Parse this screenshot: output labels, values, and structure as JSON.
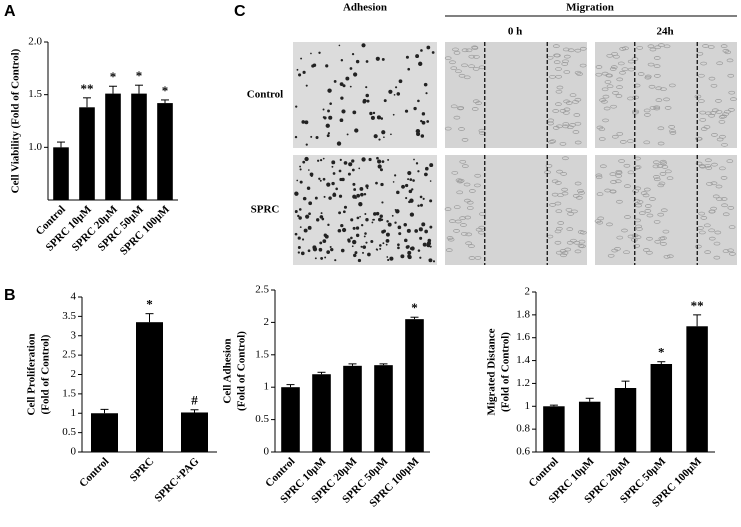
{
  "panel_labels": {
    "a": "A",
    "b": "B",
    "c": "C"
  },
  "micrographs": {
    "columns": [
      "Adhesion",
      "Migration"
    ],
    "times": [
      "0 h",
      "24h"
    ],
    "rows": [
      "Control",
      "SPRC"
    ]
  },
  "chart_data": [
    {
      "type": "bar",
      "ylabel": "Cell Viability (Fold of Control)",
      "categories": [
        "Control",
        "SPRC 10μM",
        "SPRC 20μM",
        "SPRC 50μM",
        "SPRC 100μM"
      ],
      "values": [
        1.0,
        1.38,
        1.51,
        1.51,
        1.42
      ],
      "errors": [
        0.05,
        0.09,
        0.07,
        0.08,
        0.03
      ],
      "annotations": [
        null,
        "**",
        "*",
        "*",
        "*"
      ],
      "color": "#000000",
      "ylim": [
        0.5,
        2.0
      ],
      "yticks": [
        {
          "value": 1.0,
          "label": "1.0"
        },
        1.5,
        {
          "value": 2.0,
          "label": "2.0"
        }
      ]
    },
    {
      "type": "bar",
      "ylabel": [
        "Cell Proliferation",
        "(Fold of Control)"
      ],
      "categories": [
        "Control",
        "SPRC",
        "SPRC+PAG"
      ],
      "values": [
        1.0,
        3.35,
        1.02
      ],
      "errors": [
        0.1,
        0.22,
        0.07
      ],
      "annotations": [
        null,
        "*",
        "#"
      ],
      "color": "#000000",
      "ylim": [
        0,
        4
      ],
      "yticks": [
        0,
        0.5,
        1,
        1.5,
        2,
        2.5,
        3,
        3.5,
        4
      ]
    },
    {
      "type": "bar",
      "ylabel": [
        "Cell Adhesion",
        "(Fold of Control)"
      ],
      "categories": [
        "Control",
        "SPRC 10μM",
        "SPRC 20μM",
        "SPRC 50μM",
        "SPRC 100μM"
      ],
      "values": [
        1.0,
        1.2,
        1.33,
        1.34,
        2.05
      ],
      "errors": [
        0.04,
        0.03,
        0.03,
        0.02,
        0.03
      ],
      "annotations": [
        null,
        null,
        null,
        null,
        "*"
      ],
      "color": "#000000",
      "ylim": [
        0,
        2.5
      ],
      "yticks": [
        0,
        0.5,
        1,
        1.5,
        2,
        2.5
      ]
    },
    {
      "type": "bar",
      "ylabel": [
        "Migrated Distance",
        "(Fold of Control)"
      ],
      "categories": [
        "Control",
        "SPRC 10μM",
        "SPRC 20μM",
        "SPRC 50μM",
        "SPRC 100μM"
      ],
      "values": [
        1.0,
        1.04,
        1.16,
        1.37,
        1.7
      ],
      "errors": [
        0.01,
        0.03,
        0.06,
        0.02,
        0.1
      ],
      "annotations": [
        null,
        null,
        null,
        "*",
        "**"
      ],
      "color": "#000000",
      "ylim": [
        0.6,
        2
      ],
      "yticks": [
        0.6,
        0.8,
        1,
        1.2,
        1.4,
        1.6,
        1.8,
        2
      ]
    }
  ]
}
